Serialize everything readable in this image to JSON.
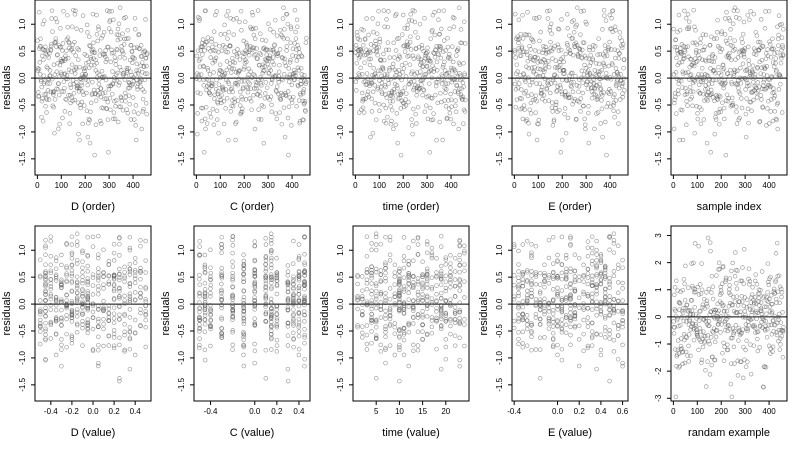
{
  "chart_data": [
    {
      "type": "scatter",
      "xlabel": "D (order)",
      "ylabel": "residuals",
      "xlim": [
        -10,
        475
      ],
      "ylim": [
        -1.8,
        1.45
      ],
      "xticks": [
        0,
        100,
        200,
        300,
        400
      ],
      "xtick_labels": [
        "0",
        "100",
        "200",
        "300",
        "400"
      ],
      "yticks": [
        -1.5,
        -1.0,
        -0.5,
        0.0,
        0.5,
        1.0
      ],
      "ytick_labels": [
        "-1.5",
        "-1.0",
        "-0.5",
        "0.0",
        "0.5",
        "1.0"
      ],
      "reference_y": 0,
      "grid": false,
      "x": [],
      "y": []
    },
    {
      "type": "scatter",
      "xlabel": "C (order)",
      "ylabel": "residuals",
      "xlim": [
        -10,
        475
      ],
      "ylim": [
        -1.8,
        1.45
      ],
      "xticks": [
        0,
        100,
        200,
        300,
        400
      ],
      "xtick_labels": [
        "0",
        "100",
        "200",
        "300",
        "400"
      ],
      "yticks": [
        -1.5,
        -1.0,
        -0.5,
        0.0,
        0.5,
        1.0
      ],
      "ytick_labels": [
        "-1.5",
        "-1.0",
        "-0.5",
        "0.0",
        "0.5",
        "1.0"
      ],
      "reference_y": 0,
      "grid": false,
      "x": [],
      "y": []
    },
    {
      "type": "scatter",
      "xlabel": "time (order)",
      "ylabel": "residuals",
      "xlim": [
        -10,
        475
      ],
      "ylim": [
        -1.8,
        1.45
      ],
      "xticks": [
        0,
        100,
        200,
        300,
        400
      ],
      "xtick_labels": [
        "0",
        "100",
        "200",
        "300",
        "400"
      ],
      "yticks": [
        -1.5,
        -1.0,
        -0.5,
        0.0,
        0.5,
        1.0
      ],
      "ytick_labels": [
        "-1.5",
        "-1.0",
        "-0.5",
        "0.0",
        "0.5",
        "1.0"
      ],
      "reference_y": 0,
      "grid": false,
      "x": [],
      "y": []
    },
    {
      "type": "scatter",
      "xlabel": "E (order)",
      "ylabel": "residuals",
      "xlim": [
        -10,
        475
      ],
      "ylim": [
        -1.8,
        1.45
      ],
      "xticks": [
        0,
        100,
        200,
        300,
        400
      ],
      "xtick_labels": [
        "0",
        "100",
        "200",
        "300",
        "400"
      ],
      "yticks": [
        -1.5,
        -1.0,
        -0.5,
        0.0,
        0.5,
        1.0
      ],
      "ytick_labels": [
        "-1.5",
        "-1.0",
        "-0.5",
        "0.0",
        "0.5",
        "1.0"
      ],
      "reference_y": 0,
      "grid": false,
      "x": [],
      "y": []
    },
    {
      "type": "scatter",
      "xlabel": "sample index",
      "ylabel": "residuals",
      "xlim": [
        -10,
        475
      ],
      "ylim": [
        -1.8,
        1.45
      ],
      "xticks": [
        0,
        100,
        200,
        300,
        400
      ],
      "xtick_labels": [
        "0",
        "100",
        "200",
        "300",
        "400"
      ],
      "yticks": [
        -1.5,
        -1.0,
        -0.5,
        0.0,
        0.5,
        1.0
      ],
      "ytick_labels": [
        "-1.5",
        "-1.0",
        "-0.5",
        "0.0",
        "0.5",
        "1.0"
      ],
      "reference_y": 0,
      "grid": false,
      "x": [],
      "y": []
    },
    {
      "type": "scatter",
      "xlabel": "D (value)",
      "ylabel": "residuals",
      "xlim": [
        -0.55,
        0.55
      ],
      "ylim": [
        -1.8,
        1.45
      ],
      "xticks": [
        -0.4,
        -0.2,
        0.0,
        0.2,
        0.4
      ],
      "xtick_labels": [
        "-0.4",
        "-0.2",
        "0.0",
        "0.2",
        "0.4"
      ],
      "yticks": [
        -1.5,
        -1.0,
        -0.5,
        0.0,
        0.5,
        1.0
      ],
      "ytick_labels": [
        "-1.5",
        "-1.0",
        "-0.5",
        "0.0",
        "0.5",
        "1.0"
      ],
      "reference_y": 0,
      "grid": false,
      "x": [],
      "y": []
    },
    {
      "type": "scatter",
      "xlabel": "C (value)",
      "ylabel": "residuals",
      "xlim": [
        -0.55,
        0.5
      ],
      "ylim": [
        -1.8,
        1.45
      ],
      "xticks": [
        -0.4,
        0.0,
        0.2,
        0.4
      ],
      "xtick_labels": [
        "-0.4",
        "0.0",
        "0.2",
        "0.4"
      ],
      "yticks": [
        -1.5,
        -1.0,
        -0.5,
        0.0,
        0.5,
        1.0
      ],
      "ytick_labels": [
        "-1.5",
        "-1.0",
        "-0.5",
        "0.0",
        "0.5",
        "1.0"
      ],
      "reference_y": 0,
      "grid": false,
      "x": [],
      "y": []
    },
    {
      "type": "scatter",
      "xlabel": "time (value)",
      "ylabel": "residuals",
      "xlim": [
        0,
        25
      ],
      "ylim": [
        -1.8,
        1.45
      ],
      "xticks": [
        5,
        10,
        15,
        20
      ],
      "xtick_labels": [
        "5",
        "10",
        "15",
        "20"
      ],
      "yticks": [
        -1.5,
        -1.0,
        -0.5,
        0.0,
        0.5,
        1.0
      ],
      "ytick_labels": [
        "-1.5",
        "-1.0",
        "-0.5",
        "0.0",
        "0.5",
        "1.0"
      ],
      "reference_y": 0,
      "grid": false,
      "x": [],
      "y": []
    },
    {
      "type": "scatter",
      "xlabel": "E (value)",
      "ylabel": "residuals",
      "xlim": [
        -0.42,
        0.65
      ],
      "ylim": [
        -1.8,
        1.45
      ],
      "xticks": [
        -0.4,
        0.0,
        0.2,
        0.4,
        0.6
      ],
      "xtick_labels": [
        "-0.4",
        "0.0",
        "0.2",
        "0.4",
        "0.6"
      ],
      "yticks": [
        -1.5,
        -1.0,
        -0.5,
        0.0,
        0.5,
        1.0
      ],
      "ytick_labels": [
        "-1.5",
        "-1.0",
        "-0.5",
        "0.0",
        "0.5",
        "1.0"
      ],
      "reference_y": 0,
      "grid": false,
      "x": [],
      "y": []
    },
    {
      "type": "scatter",
      "xlabel": "randam example",
      "ylabel": "residuals",
      "xlim": [
        -10,
        475
      ],
      "ylim": [
        -3.1,
        3.35
      ],
      "xticks": [
        0,
        100,
        200,
        300,
        400
      ],
      "xtick_labels": [
        "0",
        "100",
        "200",
        "300",
        "400"
      ],
      "yticks": [
        -3,
        -2,
        -1,
        0,
        1,
        2,
        3
      ],
      "ytick_labels": [
        "-3",
        "-2",
        "-1",
        "0",
        "1",
        "2",
        "3"
      ],
      "reference_y": 0,
      "grid": false,
      "x": [],
      "y": []
    }
  ]
}
